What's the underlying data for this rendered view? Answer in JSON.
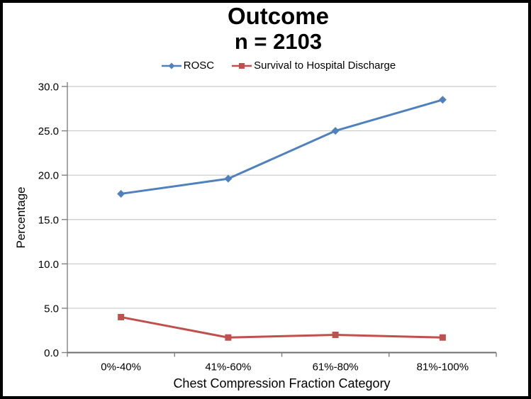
{
  "window": {
    "background": "#FFFFFF",
    "border_color": "#000000"
  },
  "chart_data": {
    "type": "line",
    "title": "Outcome",
    "subtitle": "n = 2103",
    "xlabel": "Chest Compression Fraction Category",
    "ylabel": "Percentage",
    "categories": [
      "0%-40%",
      "41%-60%",
      "61%-80%",
      "81%-100%"
    ],
    "series": [
      {
        "name": "ROSC",
        "marker": "diamond",
        "color": "#4F81BD",
        "values": [
          17.9,
          19.6,
          25.0,
          28.5
        ]
      },
      {
        "name": "Survival to Hospital Discharge",
        "marker": "square",
        "color": "#C0504D",
        "values": [
          4.0,
          1.7,
          2.0,
          1.7
        ]
      }
    ],
    "ylim": [
      0,
      30
    ],
    "ytick_step": 5,
    "ytick_labels": [
      "0.0",
      "5.0",
      "10.0",
      "15.0",
      "20.0",
      "25.0",
      "30.0"
    ],
    "grid": true,
    "grid_color": "#C9C9C9",
    "axis_color": "#808080",
    "legend_position": "top"
  }
}
